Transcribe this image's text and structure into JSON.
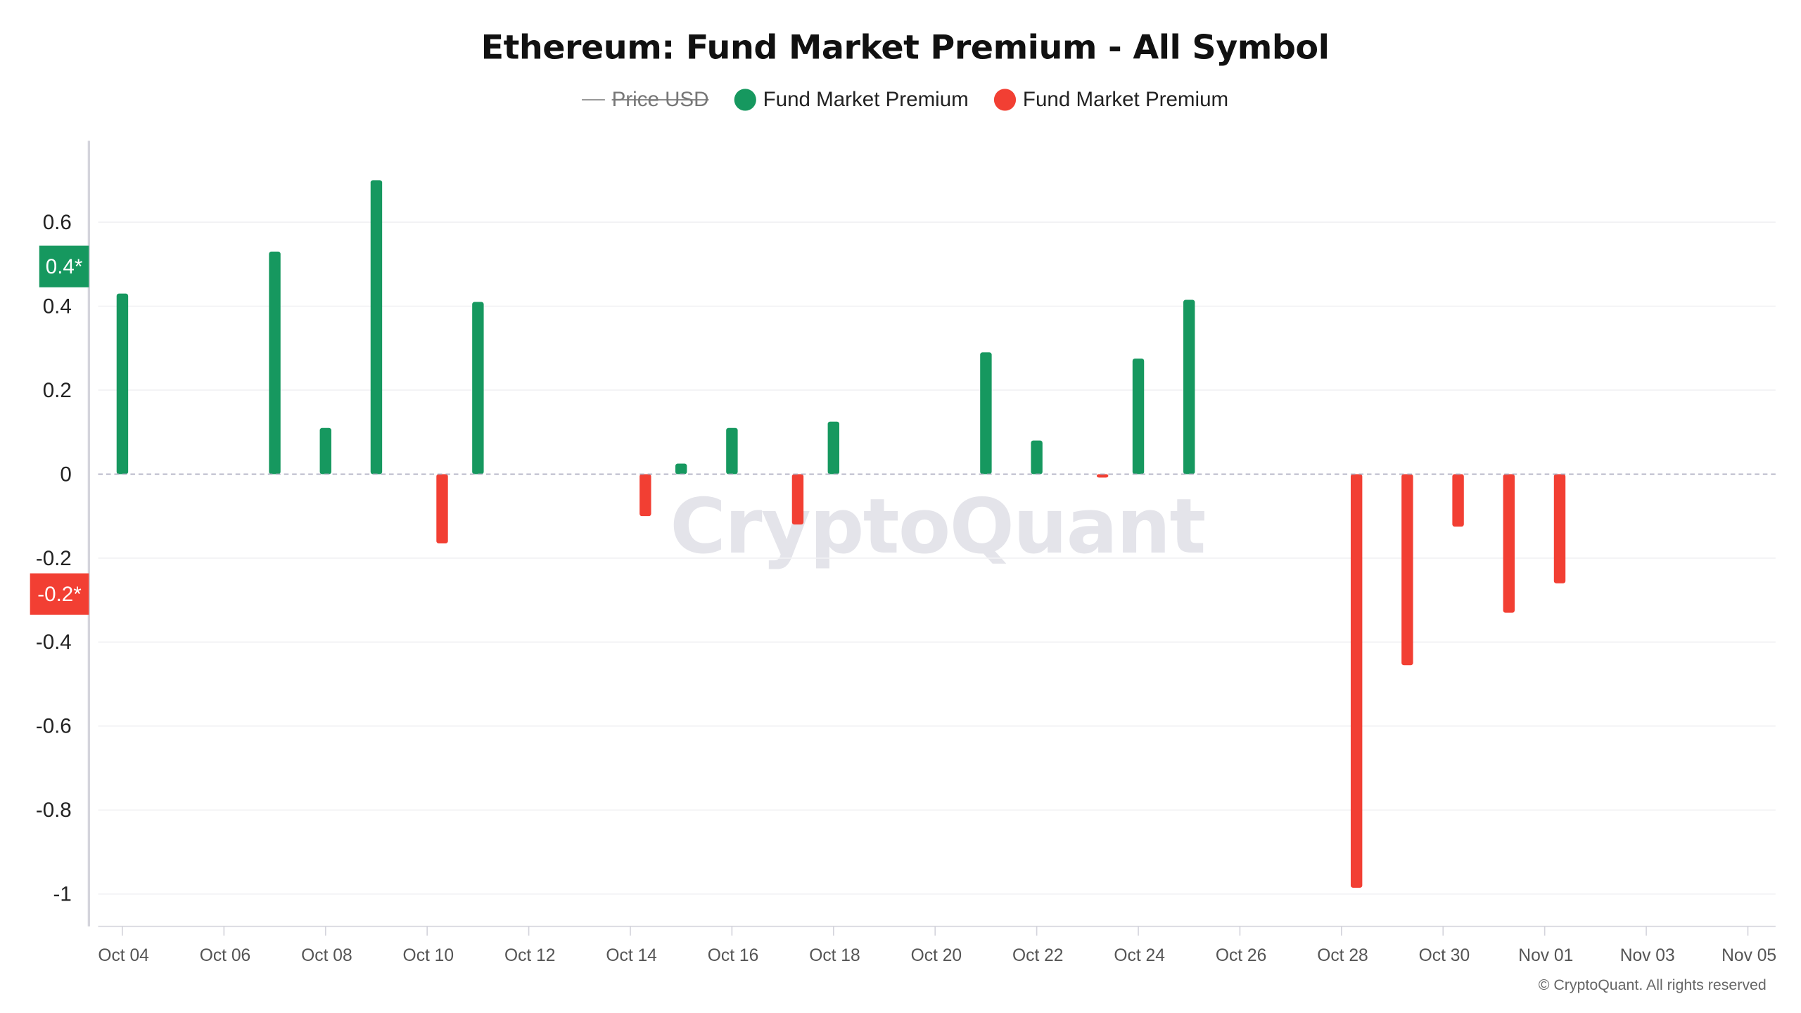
{
  "chart_data": {
    "type": "bar",
    "title": "Ethereum: Fund Market Premium - All Symbol",
    "legend": [
      {
        "label": "Price USD",
        "type": "line",
        "hidden": true,
        "color": "#888888"
      },
      {
        "label": "Fund Market Premium",
        "type": "bar",
        "color": "#16985f"
      },
      {
        "label": "Fund Market Premium",
        "type": "bar",
        "color": "#f23f33"
      }
    ],
    "ylim": [
      -1.08,
      0.78
    ],
    "yticks": [
      0.6,
      0.4,
      0.2,
      0,
      -0.2,
      -0.4,
      -0.6,
      -0.8,
      -1
    ],
    "ytick_labels": [
      "0.6",
      "0.4",
      "0.2",
      "0",
      "-0.2",
      "-0.4",
      "-0.6",
      "-0.8",
      "-1"
    ],
    "xtick_labels": [
      "Oct 04",
      "Oct 06",
      "Oct 08",
      "Oct 10",
      "Oct 12",
      "Oct 14",
      "Oct 16",
      "Oct 18",
      "Oct 20",
      "Oct 22",
      "Oct 24",
      "Oct 26",
      "Oct 28",
      "Oct 30",
      "Nov 01",
      "Nov 03",
      "Nov 05"
    ],
    "start_date": "Oct 04",
    "series": [
      {
        "name": "Fund Market Premium (positive)",
        "color": "#16985f",
        "points": [
          {
            "day": 0,
            "date": "Oct 04",
            "value": 0.43
          },
          {
            "day": 3,
            "date": "Oct 07",
            "value": 0.53
          },
          {
            "day": 4,
            "date": "Oct 08",
            "value": 0.11
          },
          {
            "day": 5,
            "date": "Oct 09",
            "value": 0.7
          },
          {
            "day": 7,
            "date": "Oct 11",
            "value": 0.41
          },
          {
            "day": 11,
            "date": "Oct 15",
            "value": 0.025
          },
          {
            "day": 12,
            "date": "Oct 16",
            "value": 0.11
          },
          {
            "day": 14,
            "date": "Oct 18",
            "value": 0.125
          },
          {
            "day": 17,
            "date": "Oct 21",
            "value": 0.29
          },
          {
            "day": 18,
            "date": "Oct 22",
            "value": 0.08
          },
          {
            "day": 20,
            "date": "Oct 24",
            "value": 0.275
          },
          {
            "day": 21,
            "date": "Oct 25",
            "value": 0.415
          }
        ]
      },
      {
        "name": "Fund Market Premium (negative)",
        "color": "#f23f33",
        "points": [
          {
            "day": 6,
            "date": "Oct 10",
            "value": -0.165
          },
          {
            "day": 10,
            "date": "Oct 14",
            "value": -0.1
          },
          {
            "day": 13,
            "date": "Oct 17",
            "value": -0.12
          },
          {
            "day": 19,
            "date": "Oct 23",
            "value": -0.008
          },
          {
            "day": 24,
            "date": "Oct 28",
            "value": -0.985
          },
          {
            "day": 25,
            "date": "Oct 29",
            "value": -0.455
          },
          {
            "day": 26,
            "date": "Oct 30",
            "value": -0.125
          },
          {
            "day": 27,
            "date": "Oct 31",
            "value": -0.33
          },
          {
            "day": 28,
            "date": "Nov 01",
            "value": -0.26
          }
        ]
      }
    ],
    "last_value_badges": [
      {
        "label": "0.4*",
        "value": 0.425,
        "color": "#16985f"
      },
      {
        "label": "-0.2*",
        "value": -0.25,
        "color": "#f23f33"
      }
    ],
    "grid": true
  },
  "watermark": "CryptoQuant",
  "copyright": "© CryptoQuant. All rights reserved"
}
